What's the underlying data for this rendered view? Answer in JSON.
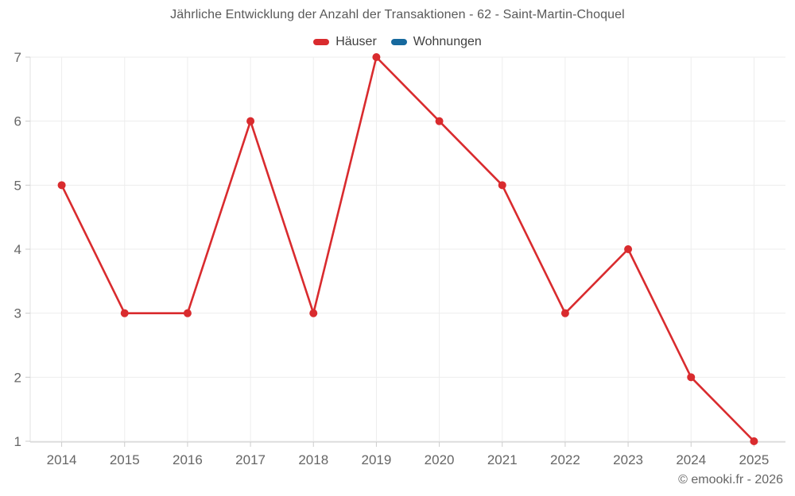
{
  "chart_data": {
    "type": "line",
    "title": "Jährliche Entwicklung der Anzahl der Transaktionen - 62 - Saint-Martin-Choquel",
    "x": [
      "2014",
      "2015",
      "2016",
      "2017",
      "2018",
      "2019",
      "2020",
      "2021",
      "2022",
      "2023",
      "2024",
      "2025"
    ],
    "series": [
      {
        "name": "Häuser",
        "color": "#d92b2e",
        "values": [
          5,
          3,
          3,
          6,
          3,
          7,
          6,
          5,
          3,
          4,
          2,
          1
        ]
      },
      {
        "name": "Wohnungen",
        "color": "#17699e",
        "values": []
      }
    ],
    "ylim": [
      1,
      7
    ],
    "yticks": [
      1,
      2,
      3,
      4,
      5,
      6,
      7
    ],
    "grid": true,
    "legend_position": "top",
    "xlabel": "",
    "ylabel": ""
  },
  "footer": {
    "copyright": "© emooki.fr - 2026"
  },
  "colors": {
    "gridline": "#ededed",
    "axis_line": "#e2e2e2",
    "bottom_axis": "#cccccc",
    "tick": "#cccccc",
    "axis_label": "#666666",
    "background": "#ffffff"
  }
}
